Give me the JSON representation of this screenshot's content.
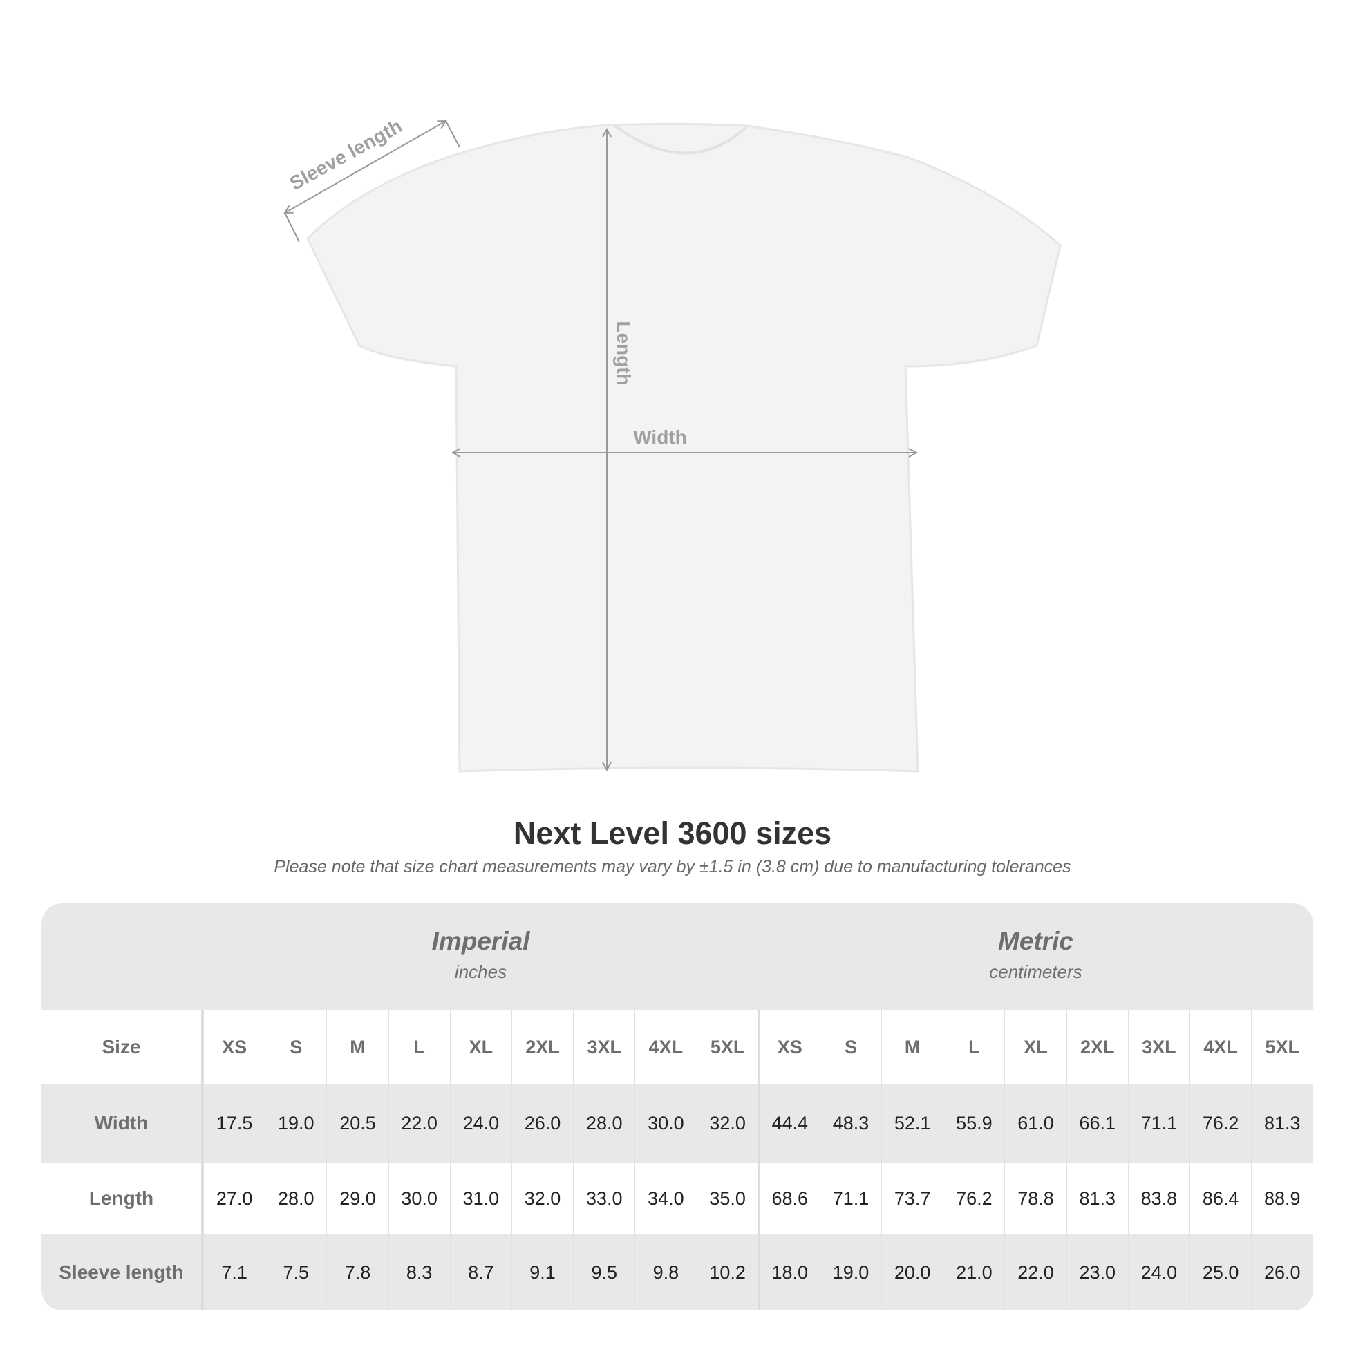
{
  "diagram": {
    "sleeve_label": "Sleeve length",
    "length_label": "Length",
    "width_label": "Width"
  },
  "title": "Next Level 3600 sizes",
  "subtitle": "Please note that size chart measurements may vary by ±1.5 in (3.8 cm) due to manufacturing tolerances",
  "table": {
    "imperial": {
      "title": "Imperial",
      "unit": "inches"
    },
    "metric": {
      "title": "Metric",
      "unit": "centimeters"
    },
    "rows": [
      {
        "label": "Size",
        "imperial": [
          "XS",
          "S",
          "M",
          "L",
          "XL",
          "2XL",
          "3XL",
          "4XL",
          "5XL"
        ],
        "metric": [
          "XS",
          "S",
          "M",
          "L",
          "XL",
          "2XL",
          "3XL",
          "4XL",
          "5XL"
        ]
      },
      {
        "label": "Width",
        "imperial": [
          "17.5",
          "19.0",
          "20.5",
          "22.0",
          "24.0",
          "26.0",
          "28.0",
          "30.0",
          "32.0"
        ],
        "metric": [
          "44.4",
          "48.3",
          "52.1",
          "55.9",
          "61.0",
          "66.1",
          "71.1",
          "76.2",
          "81.3"
        ]
      },
      {
        "label": "Length",
        "imperial": [
          "27.0",
          "28.0",
          "29.0",
          "30.0",
          "31.0",
          "32.0",
          "33.0",
          "34.0",
          "35.0"
        ],
        "metric": [
          "68.6",
          "71.1",
          "73.7",
          "76.2",
          "78.8",
          "81.3",
          "83.8",
          "86.4",
          "88.9"
        ]
      },
      {
        "label": "Sleeve length",
        "imperial": [
          "7.1",
          "7.5",
          "7.8",
          "8.3",
          "8.7",
          "9.1",
          "9.5",
          "9.8",
          "10.2"
        ],
        "metric": [
          "18.0",
          "19.0",
          "20.0",
          "21.0",
          "22.0",
          "23.0",
          "24.0",
          "25.0",
          "26.0"
        ]
      }
    ]
  }
}
